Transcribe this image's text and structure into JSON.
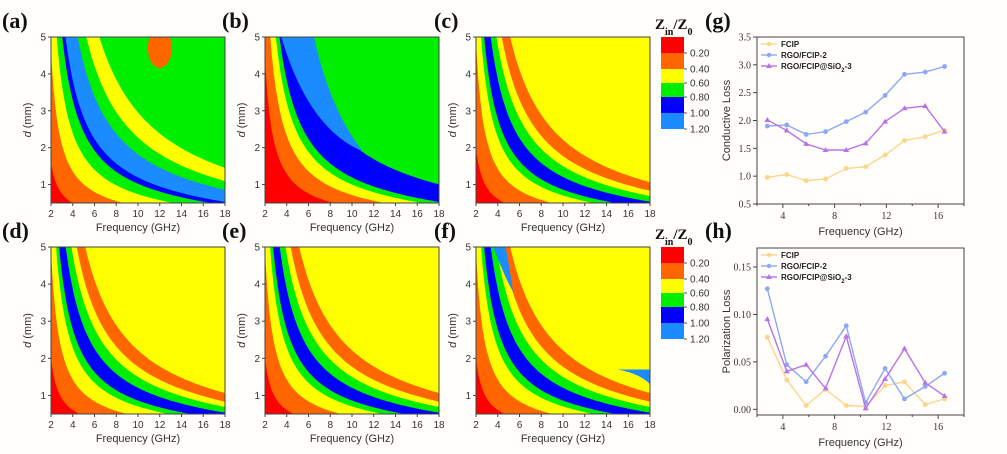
{
  "chart_data": [
    {
      "panel": "(a)",
      "type": "heatmap",
      "xlabel": "Frequency (GHz)",
      "ylabel": "d (mm)",
      "xlim": [
        2,
        18
      ],
      "ylim": [
        0.5,
        5
      ],
      "xticks": [
        "2",
        "4",
        "6",
        "8",
        "10",
        "12",
        "14",
        "16",
        "18"
      ],
      "yticks": [
        "1",
        "2",
        "3",
        "4",
        "5"
      ],
      "variant": "a"
    },
    {
      "panel": "(b)",
      "type": "heatmap",
      "xlabel": "Frequency (GHz)",
      "ylabel": "d (mm)",
      "xlim": [
        2,
        18
      ],
      "ylim": [
        0.5,
        5
      ],
      "xticks": [
        "2",
        "4",
        "6",
        "8",
        "10",
        "12",
        "14",
        "16",
        "18"
      ],
      "yticks": [
        "1",
        "2",
        "3",
        "4",
        "5"
      ],
      "variant": "b"
    },
    {
      "panel": "(c)",
      "type": "heatmap",
      "xlabel": "Frequency (GHz)",
      "ylabel": "d (mm)",
      "xlim": [
        2,
        18
      ],
      "ylim": [
        0.5,
        5
      ],
      "xticks": [
        "2",
        "4",
        "6",
        "8",
        "10",
        "12",
        "14",
        "16",
        "18"
      ],
      "yticks": [
        "1",
        "2",
        "3",
        "4",
        "5"
      ],
      "variant": "c"
    },
    {
      "panel": "(d)",
      "type": "heatmap",
      "xlabel": "Frequency (GHz)",
      "ylabel": "d (mm)",
      "xlim": [
        2,
        18
      ],
      "ylim": [
        0.5,
        5
      ],
      "xticks": [
        "2",
        "4",
        "6",
        "8",
        "10",
        "12",
        "14",
        "16",
        "18"
      ],
      "yticks": [
        "1",
        "2",
        "3",
        "4",
        "5"
      ],
      "variant": "d"
    },
    {
      "panel": "(e)",
      "type": "heatmap",
      "xlabel": "Frequency (GHz)",
      "ylabel": "d (mm)",
      "xlim": [
        2,
        18
      ],
      "ylim": [
        0.5,
        5
      ],
      "xticks": [
        "2",
        "4",
        "6",
        "8",
        "10",
        "12",
        "14",
        "16",
        "18"
      ],
      "yticks": [
        "1",
        "2",
        "3",
        "4",
        "5"
      ],
      "variant": "e"
    },
    {
      "panel": "(f)",
      "type": "heatmap",
      "xlabel": "Frequency (GHz)",
      "ylabel": "d (mm)",
      "xlim": [
        2,
        18
      ],
      "ylim": [
        0.5,
        5
      ],
      "xticks": [
        "2",
        "4",
        "6",
        "8",
        "10",
        "12",
        "14",
        "16",
        "18"
      ],
      "yticks": [
        "1",
        "2",
        "3",
        "4",
        "5"
      ],
      "variant": "f"
    },
    {
      "panel": "(g)",
      "type": "line",
      "xlabel": "Frequency (GHz)",
      "ylabel": "Conductive Loss",
      "xlim": [
        2,
        18
      ],
      "ylim": [
        0.5,
        3.5
      ],
      "xticks": [
        4,
        8,
        12,
        16
      ],
      "yticks": [
        "0.5",
        "1.0",
        "1.5",
        "2.0",
        "2.5",
        "3.0",
        "3.5"
      ],
      "ytick_values": [
        0.5,
        1.0,
        1.5,
        2.0,
        2.5,
        3.0,
        3.5
      ],
      "legend_position": "top-left",
      "x": [
        2.8,
        4.3,
        5.8,
        7.3,
        8.9,
        10.4,
        11.9,
        13.4,
        15.0,
        16.5
      ],
      "series": [
        {
          "name": "FCIP",
          "color": "#fcd58d",
          "marker": "circle",
          "values": [
            0.98,
            1.03,
            0.92,
            0.95,
            1.14,
            1.17,
            1.38,
            1.64,
            1.71,
            1.83
          ]
        },
        {
          "name": "RGO/FCIP-2",
          "color": "#8fa8f5",
          "marker": "circle",
          "values": [
            1.9,
            1.92,
            1.75,
            1.8,
            1.98,
            2.15,
            2.45,
            2.83,
            2.87,
            2.97
          ]
        },
        {
          "name": "RGO/FCIP@SiO",
          "sub": "2",
          "suffix": "-3",
          "color": "#b774e8",
          "marker": "triangle",
          "values": [
            2.01,
            1.82,
            1.58,
            1.47,
            1.47,
            1.59,
            1.98,
            2.22,
            2.26,
            1.8
          ]
        }
      ]
    },
    {
      "panel": "(h)",
      "type": "line",
      "xlabel": "Frequency (GHz)",
      "ylabel": "Polarization Loss",
      "xlim": [
        2,
        18
      ],
      "ylim": [
        -0.006,
        0.17
      ],
      "xticks": [
        4,
        8,
        12,
        16
      ],
      "yticks": [
        "0.00",
        "0.05",
        "0.10",
        "0.15"
      ],
      "ytick_values": [
        0.0,
        0.05,
        0.1,
        0.15
      ],
      "legend_position": "top-left",
      "x": [
        2.8,
        4.3,
        5.8,
        7.3,
        8.9,
        10.4,
        11.9,
        13.4,
        15.0,
        16.5
      ],
      "series": [
        {
          "name": "FCIP",
          "color": "#fcd58d",
          "marker": "circle",
          "values": [
            0.076,
            0.031,
            0.004,
            0.021,
            0.004,
            0.003,
            0.025,
            0.029,
            0.005,
            0.011
          ]
        },
        {
          "name": "RGO/FCIP-2",
          "color": "#8fa8f5",
          "marker": "circle",
          "values": [
            0.127,
            0.047,
            0.029,
            0.056,
            0.088,
            0.007,
            0.043,
            0.011,
            0.024,
            0.038
          ]
        },
        {
          "name": "RGO/FCIP@SiO",
          "sub": "2",
          "suffix": "-3",
          "color": "#b774e8",
          "marker": "triangle",
          "values": [
            0.095,
            0.04,
            0.047,
            0.022,
            0.077,
            0.001,
            0.032,
            0.064,
            0.028,
            0.014
          ]
        }
      ]
    }
  ],
  "colorbar": {
    "title_main": "Z",
    "title_sub1": "in",
    "title_sep": "/Z",
    "title_sub2": "0",
    "labels": [
      "0.20",
      "0.40",
      "0.60",
      "0.80",
      "1.00",
      "1.20"
    ],
    "colors": [
      "#ff0000",
      "#ff6600",
      "#ffff00",
      "#00ee00",
      "#0000ff",
      "#1a8cff"
    ]
  }
}
